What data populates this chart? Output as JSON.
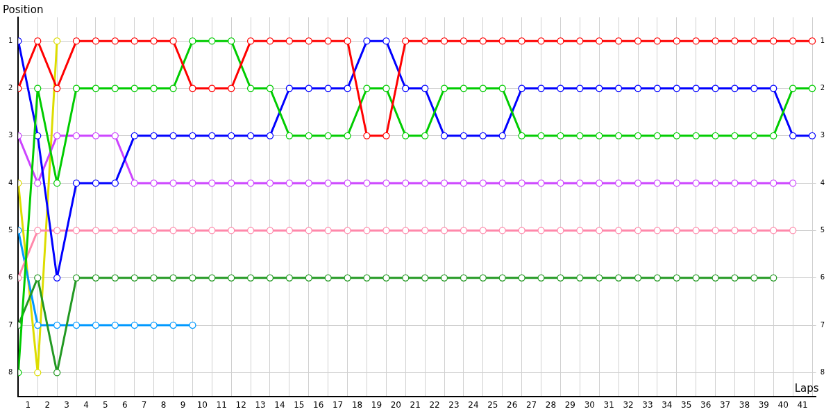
{
  "chart_data": {
    "type": "line",
    "xlabel": "Laps",
    "ylabel": "Position",
    "x": [
      0,
      1,
      2,
      3,
      4,
      5,
      6,
      7,
      8,
      9,
      10,
      11,
      12,
      13,
      14,
      15,
      16,
      17,
      18,
      19,
      20,
      21,
      22,
      23,
      24,
      25,
      26,
      27,
      28,
      29,
      30,
      31,
      32,
      33,
      34,
      35,
      36,
      37,
      38,
      39,
      40,
      41
    ],
    "series": [
      {
        "color": "#ff0000",
        "values": [
          2,
          1,
          2,
          1,
          1,
          1,
          1,
          1,
          1,
          2,
          2,
          2,
          1,
          1,
          1,
          1,
          1,
          1,
          3,
          3,
          1,
          1,
          1,
          1,
          1,
          1,
          1,
          1,
          1,
          1,
          1,
          1,
          1,
          1,
          1,
          1,
          1,
          1,
          1,
          1,
          1,
          1
        ]
      },
      {
        "color": "#00cc00",
        "values": [
          8,
          2,
          4,
          2,
          2,
          2,
          2,
          2,
          2,
          1,
          1,
          1,
          2,
          2,
          3,
          3,
          3,
          3,
          2,
          2,
          3,
          3,
          2,
          2,
          2,
          2,
          3,
          3,
          3,
          3,
          3,
          3,
          3,
          3,
          3,
          3,
          3,
          3,
          3,
          3,
          2,
          2
        ]
      },
      {
        "color": "#0000ff",
        "values": [
          1,
          3,
          6,
          4,
          4,
          4,
          3,
          3,
          3,
          3,
          3,
          3,
          3,
          3,
          2,
          2,
          2,
          2,
          1,
          1,
          2,
          2,
          3,
          3,
          3,
          3,
          2,
          2,
          2,
          2,
          2,
          2,
          2,
          2,
          2,
          2,
          2,
          2,
          2,
          2,
          3,
          3
        ]
      },
      {
        "color": "#cc44ff",
        "values": [
          3,
          4,
          3,
          3,
          3,
          3,
          4,
          4,
          4,
          4,
          4,
          4,
          4,
          4,
          4,
          4,
          4,
          4,
          4,
          4,
          4,
          4,
          4,
          4,
          4,
          4,
          4,
          4,
          4,
          4,
          4,
          4,
          4,
          4,
          4,
          4,
          4,
          4,
          4,
          4,
          4,
          null
        ]
      },
      {
        "color": "#ff88aa",
        "values": [
          6,
          5,
          5,
          5,
          5,
          5,
          5,
          5,
          5,
          5,
          5,
          5,
          5,
          5,
          5,
          5,
          5,
          5,
          5,
          5,
          5,
          5,
          5,
          5,
          5,
          5,
          5,
          5,
          5,
          5,
          5,
          5,
          5,
          5,
          5,
          5,
          5,
          5,
          5,
          5,
          5,
          null
        ]
      },
      {
        "color": "#229922",
        "values": [
          7,
          6,
          8,
          6,
          6,
          6,
          6,
          6,
          6,
          6,
          6,
          6,
          6,
          6,
          6,
          6,
          6,
          6,
          6,
          6,
          6,
          6,
          6,
          6,
          6,
          6,
          6,
          6,
          6,
          6,
          6,
          6,
          6,
          6,
          6,
          6,
          6,
          6,
          6,
          6,
          null,
          null
        ]
      },
      {
        "color": "#0099ff",
        "values": [
          5,
          7,
          7,
          7,
          7,
          7,
          7,
          7,
          7,
          7,
          null,
          null,
          null,
          null,
          null,
          null,
          null,
          null,
          null,
          null,
          null,
          null,
          null,
          null,
          null,
          null,
          null,
          null,
          null,
          null,
          null,
          null,
          null,
          null,
          null,
          null,
          null,
          null,
          null,
          null,
          null,
          null
        ]
      },
      {
        "color": "#dddd00",
        "values": [
          4,
          8,
          1,
          null,
          null,
          null,
          null,
          null,
          null,
          null,
          null,
          null,
          null,
          null,
          null,
          null,
          null,
          null,
          null,
          null,
          null,
          null,
          null,
          null,
          null,
          null,
          null,
          null,
          null,
          null,
          null,
          null,
          null,
          null,
          null,
          null,
          null,
          null,
          null,
          null,
          null,
          null
        ]
      }
    ],
    "xlim": [
      0,
      41.2
    ],
    "xticks": [
      {
        "value": 0,
        "label": null
      },
      {
        "value": 0.5,
        "label": "1"
      },
      {
        "value": 1,
        "label": null
      },
      {
        "value": 1.5,
        "label": "2"
      },
      {
        "value": 2,
        "label": null
      },
      {
        "value": 2.5,
        "label": "3"
      },
      {
        "value": 3,
        "label": null
      },
      {
        "value": 3.5,
        "label": "4"
      },
      {
        "value": 4,
        "label": null
      },
      {
        "value": 4.5,
        "label": "5"
      },
      {
        "value": 5,
        "label": null
      },
      {
        "value": 5.5,
        "label": "6"
      },
      {
        "value": 6,
        "label": null
      },
      {
        "value": 6.5,
        "label": "7"
      },
      {
        "value": 7,
        "label": null
      },
      {
        "value": 7.5,
        "label": "8"
      },
      {
        "value": 8,
        "label": null
      },
      {
        "value": 8.5,
        "label": "9"
      },
      {
        "value": 9,
        "label": null
      },
      {
        "value": 9.5,
        "label": "10"
      },
      {
        "value": 10,
        "label": null
      },
      {
        "value": 10.5,
        "label": "11"
      },
      {
        "value": 11,
        "label": null
      },
      {
        "value": 11.5,
        "label": "12"
      },
      {
        "value": 12,
        "label": null
      },
      {
        "value": 12.5,
        "label": "13"
      },
      {
        "value": 13,
        "label": null
      },
      {
        "value": 13.5,
        "label": "14"
      },
      {
        "value": 14,
        "label": null
      },
      {
        "value": 14.5,
        "label": "15"
      },
      {
        "value": 15,
        "label": null
      },
      {
        "value": 15.5,
        "label": "16"
      },
      {
        "value": 16,
        "label": null
      },
      {
        "value": 16.5,
        "label": "17"
      },
      {
        "value": 17,
        "label": null
      },
      {
        "value": 17.5,
        "label": "18"
      },
      {
        "value": 18,
        "label": null
      },
      {
        "value": 18.5,
        "label": "19"
      },
      {
        "value": 19,
        "label": null
      },
      {
        "value": 19.5,
        "label": "20"
      },
      {
        "value": 20,
        "label": null
      },
      {
        "value": 20.5,
        "label": "21"
      },
      {
        "value": 21,
        "label": null
      },
      {
        "value": 21.5,
        "label": "22"
      },
      {
        "value": 22,
        "label": null
      },
      {
        "value": 22.5,
        "label": "23"
      },
      {
        "value": 23,
        "label": null
      },
      {
        "value": 23.5,
        "label": "24"
      },
      {
        "value": 24,
        "label": null
      },
      {
        "value": 24.5,
        "label": "25"
      },
      {
        "value": 25,
        "label": null
      },
      {
        "value": 25.5,
        "label": "26"
      },
      {
        "value": 26,
        "label": null
      },
      {
        "value": 26.5,
        "label": "27"
      },
      {
        "value": 27,
        "label": null
      },
      {
        "value": 27.5,
        "label": "28"
      },
      {
        "value": 28,
        "label": null
      },
      {
        "value": 28.5,
        "label": "29"
      },
      {
        "value": 29,
        "label": null
      },
      {
        "value": 29.5,
        "label": "30"
      },
      {
        "value": 30,
        "label": null
      },
      {
        "value": 30.5,
        "label": "31"
      },
      {
        "value": 31,
        "label": null
      },
      {
        "value": 31.5,
        "label": "32"
      },
      {
        "value": 32,
        "label": null
      },
      {
        "value": 32.5,
        "label": "33"
      },
      {
        "value": 33,
        "label": null
      },
      {
        "value": 33.5,
        "label": "34"
      },
      {
        "value": 34,
        "label": null
      },
      {
        "value": 34.5,
        "label": "35"
      },
      {
        "value": 35,
        "label": null
      },
      {
        "value": 35.5,
        "label": "36"
      },
      {
        "value": 36,
        "label": null
      },
      {
        "value": 36.5,
        "label": "37"
      },
      {
        "value": 37,
        "label": null
      },
      {
        "value": 37.5,
        "label": "38"
      },
      {
        "value": 38,
        "label": null
      },
      {
        "value": 38.5,
        "label": "39"
      },
      {
        "value": 39,
        "label": null
      },
      {
        "value": 39.5,
        "label": "40"
      },
      {
        "value": 40,
        "label": null
      },
      {
        "value": 40.5,
        "label": "41"
      },
      {
        "value": 41,
        "label": null
      }
    ],
    "ylim": [
      8.5,
      0.5
    ],
    "yticks": [
      1,
      2,
      3,
      4,
      5,
      6,
      7,
      8
    ],
    "y2lim": [
      8.5,
      0.5
    ],
    "y2ticks": [
      1,
      2,
      3,
      4,
      5,
      6,
      7,
      8
    ],
    "grid": true,
    "legend": false,
    "marker": "circle",
    "line_style": "solid"
  }
}
